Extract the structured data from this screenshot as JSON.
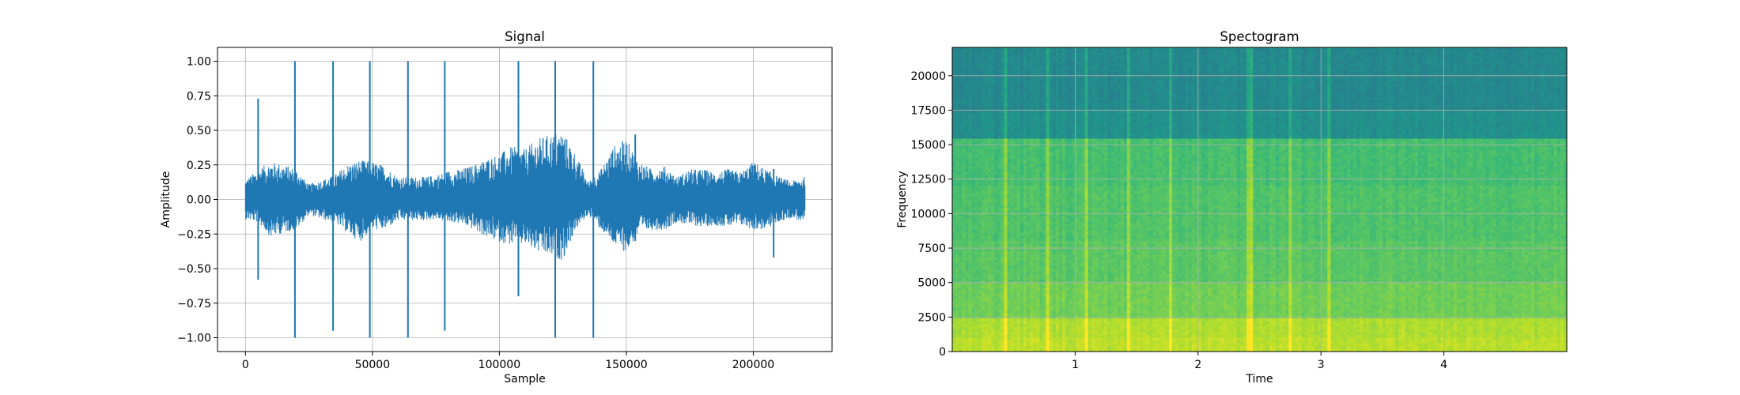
{
  "chart_data": [
    {
      "type": "line",
      "title": "Signal",
      "xlabel": "Sample",
      "ylabel": "Amplitude",
      "xlim": [
        -11000,
        231000
      ],
      "ylim": [
        -1.1,
        1.1
      ],
      "xticks": [
        0,
        50000,
        100000,
        150000,
        200000
      ],
      "xtick_labels": [
        "0",
        "50000",
        "100000",
        "150000",
        "200000"
      ],
      "yticks": [
        -1.0,
        -0.75,
        -0.5,
        -0.25,
        0.0,
        0.25,
        0.5,
        0.75,
        1.0
      ],
      "ytick_labels": [
        "−1.00",
        "−0.75",
        "−0.50",
        "−0.25",
        "0.00",
        "0.25",
        "0.50",
        "0.75",
        "1.00"
      ],
      "grid": true,
      "color": "#1f77b4",
      "n_samples": 220500,
      "envelope": {
        "x": [
          0,
          5000,
          10000,
          15000,
          20000,
          25000,
          30000,
          35000,
          40000,
          45000,
          50000,
          55000,
          60000,
          65000,
          70000,
          75000,
          80000,
          85000,
          90000,
          95000,
          100000,
          105000,
          110000,
          115000,
          120000,
          125000,
          130000,
          135000,
          140000,
          145000,
          150000,
          155000,
          160000,
          165000,
          170000,
          175000,
          180000,
          185000,
          190000,
          195000,
          200000,
          205000,
          210000,
          215000,
          220000
        ],
        "upper": [
          0.13,
          0.2,
          0.25,
          0.23,
          0.2,
          0.1,
          0.13,
          0.16,
          0.23,
          0.26,
          0.25,
          0.22,
          0.15,
          0.15,
          0.15,
          0.16,
          0.19,
          0.2,
          0.23,
          0.27,
          0.3,
          0.35,
          0.33,
          0.4,
          0.43,
          0.45,
          0.3,
          0.12,
          0.2,
          0.35,
          0.4,
          0.25,
          0.2,
          0.22,
          0.15,
          0.2,
          0.2,
          0.18,
          0.2,
          0.18,
          0.25,
          0.2,
          0.15,
          0.12,
          0.15
        ],
        "lower": [
          -0.13,
          -0.15,
          -0.25,
          -0.22,
          -0.2,
          -0.1,
          -0.13,
          -0.15,
          -0.22,
          -0.28,
          -0.2,
          -0.2,
          -0.14,
          -0.14,
          -0.14,
          -0.13,
          -0.15,
          -0.16,
          -0.2,
          -0.25,
          -0.28,
          -0.3,
          -0.3,
          -0.35,
          -0.38,
          -0.4,
          -0.2,
          -0.1,
          -0.2,
          -0.3,
          -0.35,
          -0.22,
          -0.2,
          -0.2,
          -0.15,
          -0.17,
          -0.18,
          -0.17,
          -0.18,
          -0.17,
          -0.2,
          -0.2,
          -0.15,
          -0.12,
          -0.15
        ]
      },
      "spikes": [
        {
          "x": 5000,
          "max": 0.73,
          "min": -0.58
        },
        {
          "x": 19500,
          "max": 1.0,
          "min": -1.0
        },
        {
          "x": 34500,
          "max": 1.0,
          "min": -0.95
        },
        {
          "x": 49000,
          "max": 1.0,
          "min": -1.0
        },
        {
          "x": 64000,
          "max": 1.0,
          "min": -1.0
        },
        {
          "x": 78500,
          "max": 1.0,
          "min": -0.95
        },
        {
          "x": 107500,
          "max": 1.0,
          "min": -0.7
        },
        {
          "x": 122000,
          "max": 1.0,
          "min": -1.0
        },
        {
          "x": 137000,
          "max": 1.0,
          "min": -1.0
        },
        {
          "x": 153500,
          "max": 0.47,
          "min": -0.3
        },
        {
          "x": 208000,
          "max": 0.22,
          "min": -0.42
        }
      ]
    },
    {
      "type": "heatmap",
      "title": "Spectogram",
      "xlabel": "Time",
      "ylabel": "Frequency",
      "xlim": [
        0.0,
        5.0
      ],
      "ylim": [
        0,
        22050
      ],
      "xticks": [
        1,
        2,
        3,
        4
      ],
      "xtick_labels": [
        "1",
        "2",
        "3",
        "4"
      ],
      "yticks": [
        0,
        2500,
        5000,
        7500,
        10000,
        12500,
        15000,
        17500,
        20000
      ],
      "ytick_labels": [
        "0",
        "2500",
        "5000",
        "7500",
        "10000",
        "12500",
        "15000",
        "17500",
        "20000"
      ],
      "grid": true,
      "colormap": "viridis",
      "bands": [
        {
          "from": 0,
          "to": 1000,
          "level": 0.9
        },
        {
          "from": 1000,
          "to": 2500,
          "level": 0.88
        },
        {
          "from": 2500,
          "to": 5000,
          "level": 0.78
        },
        {
          "from": 5000,
          "to": 8000,
          "level": 0.74
        },
        {
          "from": 8000,
          "to": 12000,
          "level": 0.72
        },
        {
          "from": 12000,
          "to": 15500,
          "level": 0.7
        },
        {
          "from": 15500,
          "to": 17500,
          "level": 0.5
        },
        {
          "from": 17500,
          "to": 22050,
          "level": 0.47
        }
      ],
      "transient_times": [
        0.44,
        0.78,
        1.1,
        1.44,
        1.77,
        2.42,
        2.75,
        3.07
      ]
    }
  ]
}
